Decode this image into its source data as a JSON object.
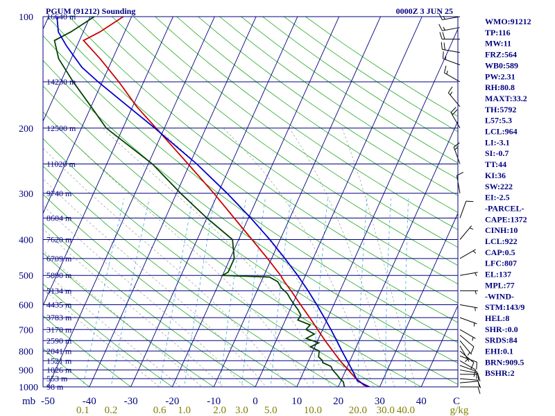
{
  "header": {
    "station": "PGUM (91212) Sounding",
    "time": "0000Z  3 JUN 25"
  },
  "stats": [
    "WMO:91212",
    "TP:116",
    "MW:11",
    "FRZ:564",
    "WB0:589",
    "PW:2.31",
    "RH:80.8",
    "MAXT:33.2",
    "TH:5792",
    "L57:5.3",
    "LCL:964",
    "LI:-3.1",
    "SI:-0.7",
    "TT:44",
    "KI:36",
    "SW:222",
    "EI:-2.5",
    "-PARCEL-",
    "CAPE:1372",
    "CINH:10",
    "LCL:922",
    "CAP:0.5",
    "LFC:807",
    "EL:137",
    "MPL:77",
    "-WIND-",
    "STM:143/9",
    "HEL:8",
    "SHR-:0.0",
    "SRDS:84",
    "EHI:0.1",
    "BRN:909.5",
    "BSHR:2"
  ],
  "colors": {
    "isobar": "#000080",
    "temperature": "#cc0000",
    "dewpoint": "#004000",
    "parcel": "#0000cc",
    "isotherm": "#000080",
    "dry_adiabat": "#22aa22",
    "moist_adiabat": "#999999",
    "mixing_ratio": "#44aadd",
    "wind": "#000000",
    "stats_text": "#000080",
    "mixing_ratio_labels": "#808000"
  },
  "chart_data": {
    "type": "line",
    "title": "PGUM (91212) Sounding",
    "valid_time": "0000Z  3 JUN 25",
    "x_axis": {
      "unit_label": "C",
      "range": [
        -50,
        50
      ],
      "ticks": [
        -50,
        -40,
        -30,
        -20,
        -10,
        0,
        10,
        20,
        30,
        40
      ]
    },
    "y_axis": {
      "unit_label": "mb",
      "scale": "log",
      "range": [
        1000,
        100
      ],
      "ticks": [
        100,
        200,
        300,
        400,
        500,
        600,
        700,
        800,
        900,
        1000
      ]
    },
    "height_labels": [
      {
        "p": 100,
        "label": "16640 m"
      },
      {
        "p": 150,
        "label": "14230 m"
      },
      {
        "p": 200,
        "label": "12500 m"
      },
      {
        "p": 250,
        "label": "11020 m"
      },
      {
        "p": 300,
        "label": "9740 m"
      },
      {
        "p": 350,
        "label": "8604 m"
      },
      {
        "p": 400,
        "label": "7620 m"
      },
      {
        "p": 450,
        "label": "6709 m"
      },
      {
        "p": 500,
        "label": "5890 m"
      },
      {
        "p": 550,
        "label": "5134 m"
      },
      {
        "p": 600,
        "label": "4435 m"
      },
      {
        "p": 650,
        "label": "3783 m"
      },
      {
        "p": 700,
        "label": "3170 m"
      },
      {
        "p": 750,
        "label": "2590 m"
      },
      {
        "p": 800,
        "label": "2041 m"
      },
      {
        "p": 850,
        "label": "1521 m"
      },
      {
        "p": 900,
        "label": "1026 m"
      },
      {
        "p": 950,
        "label": "553 m"
      },
      {
        "p": 1000,
        "label": "98 m"
      }
    ],
    "mixing_ratio_labels": [
      "0.1",
      "0.2",
      "0.6",
      "1.0",
      "2.0",
      "3.0",
      "5.0",
      "10.0",
      "20.0",
      "30.0",
      "40.0",
      "g/kg"
    ],
    "mixing_ratio_values": [
      0.1,
      0.2,
      0.6,
      1.0,
      2.0,
      3.0,
      5.0,
      10.0,
      20.0,
      30.0,
      40.0
    ],
    "series": [
      {
        "name": "Temperature",
        "points": [
          [
            1000,
            27.5
          ],
          [
            990,
            26.0
          ],
          [
            970,
            24.8
          ],
          [
            950,
            23.4
          ],
          [
            925,
            22.0
          ],
          [
            900,
            20.6
          ],
          [
            850,
            17.6
          ],
          [
            800,
            14.8
          ],
          [
            750,
            11.8
          ],
          [
            700,
            8.8
          ],
          [
            650,
            5.6
          ],
          [
            600,
            2.0
          ],
          [
            550,
            -1.8
          ],
          [
            520,
            -4.4
          ],
          [
            500,
            -6.0
          ],
          [
            450,
            -11.0
          ],
          [
            400,
            -16.8
          ],
          [
            350,
            -23.4
          ],
          [
            300,
            -31.0
          ],
          [
            250,
            -40.4
          ],
          [
            200,
            -52.0
          ],
          [
            175,
            -59.0
          ],
          [
            150,
            -66.0
          ],
          [
            130,
            -73.0
          ],
          [
            116,
            -79.0
          ],
          [
            110,
            -76.0
          ],
          [
            100,
            -72.0
          ]
        ]
      },
      {
        "name": "Dewpoint",
        "points": [
          [
            1000,
            21.5
          ],
          [
            990,
            21.2
          ],
          [
            970,
            20.7
          ],
          [
            950,
            19.5
          ],
          [
            930,
            18.5
          ],
          [
            900,
            16.8
          ],
          [
            880,
            16.0
          ],
          [
            860,
            13.6
          ],
          [
            850,
            13.4
          ],
          [
            830,
            12.0
          ],
          [
            800,
            11.5
          ],
          [
            780,
            9.0
          ],
          [
            760,
            10.5
          ],
          [
            740,
            7.0
          ],
          [
            720,
            8.5
          ],
          [
            700,
            6.0
          ],
          [
            680,
            6.5
          ],
          [
            660,
            3.0
          ],
          [
            640,
            3.2
          ],
          [
            620,
            2.0
          ],
          [
            600,
            0.5
          ],
          [
            580,
            -1.0
          ],
          [
            560,
            -2.4
          ],
          [
            540,
            -4.5
          ],
          [
            520,
            -6.0
          ],
          [
            505,
            -8.5
          ],
          [
            500,
            -20.0
          ],
          [
            490,
            -19.0
          ],
          [
            450,
            -19.0
          ],
          [
            400,
            -21.5
          ],
          [
            350,
            -30.0
          ],
          [
            300,
            -39.0
          ],
          [
            250,
            -49.0
          ],
          [
            200,
            -64.0
          ],
          [
            175,
            -70.0
          ],
          [
            150,
            -77.0
          ],
          [
            130,
            -83.0
          ],
          [
            116,
            -86.0
          ],
          [
            110,
            -83.0
          ],
          [
            100,
            -79.0
          ]
        ]
      },
      {
        "name": "Parcel",
        "points": [
          [
            1000,
            27.5
          ],
          [
            964,
            24.0
          ],
          [
            922,
            22.4
          ],
          [
            900,
            21.5
          ],
          [
            850,
            19.3
          ],
          [
            800,
            17.0
          ],
          [
            750,
            14.6
          ],
          [
            700,
            12.0
          ],
          [
            650,
            9.1
          ],
          [
            600,
            5.9
          ],
          [
            550,
            2.3
          ],
          [
            500,
            -1.9
          ],
          [
            450,
            -6.8
          ],
          [
            400,
            -12.5
          ],
          [
            350,
            -19.4
          ],
          [
            300,
            -27.8
          ],
          [
            250,
            -38.3
          ],
          [
            200,
            -52.3
          ],
          [
            175,
            -61.0
          ],
          [
            150,
            -71.0
          ],
          [
            137,
            -76.5
          ],
          [
            120,
            -82.5
          ],
          [
            110,
            -86.0
          ],
          [
            100,
            -88.0
          ]
        ]
      }
    ],
    "wind_barbs": [
      {
        "p": 1000,
        "dir": 90,
        "spd": 10
      },
      {
        "p": 975,
        "dir": 85,
        "spd": 12
      },
      {
        "p": 950,
        "dir": 95,
        "spd": 12
      },
      {
        "p": 925,
        "dir": 90,
        "spd": 10
      },
      {
        "p": 900,
        "dir": 100,
        "spd": 10
      },
      {
        "p": 875,
        "dir": 110,
        "spd": 10
      },
      {
        "p": 850,
        "dir": 120,
        "spd": 10
      },
      {
        "p": 825,
        "dir": 110,
        "spd": 8
      },
      {
        "p": 800,
        "dir": 130,
        "spd": 8
      },
      {
        "p": 775,
        "dir": 150,
        "spd": 6
      },
      {
        "p": 750,
        "dir": 140,
        "spd": 6
      },
      {
        "p": 725,
        "dir": 130,
        "spd": 8
      },
      {
        "p": 700,
        "dir": 120,
        "spd": 6
      },
      {
        "p": 650,
        "dir": 110,
        "spd": 5
      },
      {
        "p": 600,
        "dir": 100,
        "spd": 5
      },
      {
        "p": 550,
        "dir": 90,
        "spd": 5
      },
      {
        "p": 500,
        "dir": 80,
        "spd": 5
      },
      {
        "p": 450,
        "dir": 60,
        "spd": 5
      },
      {
        "p": 400,
        "dir": 40,
        "spd": 5
      },
      {
        "p": 350,
        "dir": 20,
        "spd": 10
      },
      {
        "p": 300,
        "dir": 350,
        "spd": 10
      },
      {
        "p": 250,
        "dir": 340,
        "spd": 15
      },
      {
        "p": 200,
        "dir": 330,
        "spd": 20
      },
      {
        "p": 175,
        "dir": 320,
        "spd": 15
      },
      {
        "p": 150,
        "dir": 300,
        "spd": 15
      },
      {
        "p": 135,
        "dir": 290,
        "spd": 15
      },
      {
        "p": 125,
        "dir": 280,
        "spd": 20
      },
      {
        "p": 115,
        "dir": 270,
        "spd": 20
      },
      {
        "p": 107,
        "dir": 260,
        "spd": 15
      },
      {
        "p": 100,
        "dir": 260,
        "spd": 15
      }
    ]
  }
}
